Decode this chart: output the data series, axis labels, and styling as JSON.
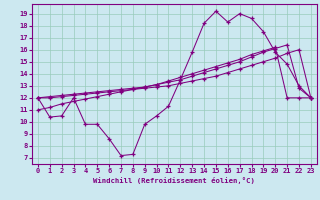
{
  "xlabel": "Windchill (Refroidissement éolien,°C)",
  "bg_color": "#cce8f0",
  "line_color": "#800080",
  "grid_color": "#99ccbb",
  "xlim": [
    -0.5,
    23.5
  ],
  "ylim": [
    6.5,
    19.8
  ],
  "yticks": [
    7,
    8,
    9,
    10,
    11,
    12,
    13,
    14,
    15,
    16,
    17,
    18,
    19
  ],
  "xticks": [
    0,
    1,
    2,
    3,
    4,
    5,
    6,
    7,
    8,
    9,
    10,
    11,
    12,
    13,
    14,
    15,
    16,
    17,
    18,
    19,
    20,
    21,
    22,
    23
  ],
  "s1": [
    12.0,
    12.0,
    12.1,
    12.2,
    12.3,
    12.4,
    12.5,
    12.6,
    12.7,
    12.8,
    12.9,
    13.0,
    13.2,
    13.4,
    13.6,
    13.8,
    14.1,
    14.4,
    14.7,
    15.0,
    15.3,
    15.7,
    16.0,
    12.0
  ],
  "s2": [
    12.0,
    12.1,
    12.2,
    12.3,
    12.4,
    12.5,
    12.6,
    12.7,
    12.8,
    12.9,
    13.1,
    13.3,
    13.5,
    13.8,
    14.1,
    14.4,
    14.7,
    15.0,
    15.4,
    15.8,
    16.1,
    16.4,
    12.8,
    12.0
  ],
  "s3": [
    12.0,
    10.4,
    10.5,
    12.0,
    9.8,
    9.8,
    8.6,
    7.2,
    7.3,
    9.8,
    10.5,
    11.3,
    13.5,
    15.8,
    18.2,
    19.2,
    18.3,
    19.0,
    18.6,
    17.5,
    15.8,
    14.8,
    13.0,
    12.0
  ],
  "s4": [
    11.0,
    11.2,
    11.5,
    11.7,
    11.9,
    12.1,
    12.3,
    12.5,
    12.7,
    12.9,
    13.1,
    13.4,
    13.7,
    14.0,
    14.3,
    14.6,
    14.9,
    15.2,
    15.6,
    15.9,
    16.2,
    12.0,
    12.0,
    12.0
  ]
}
